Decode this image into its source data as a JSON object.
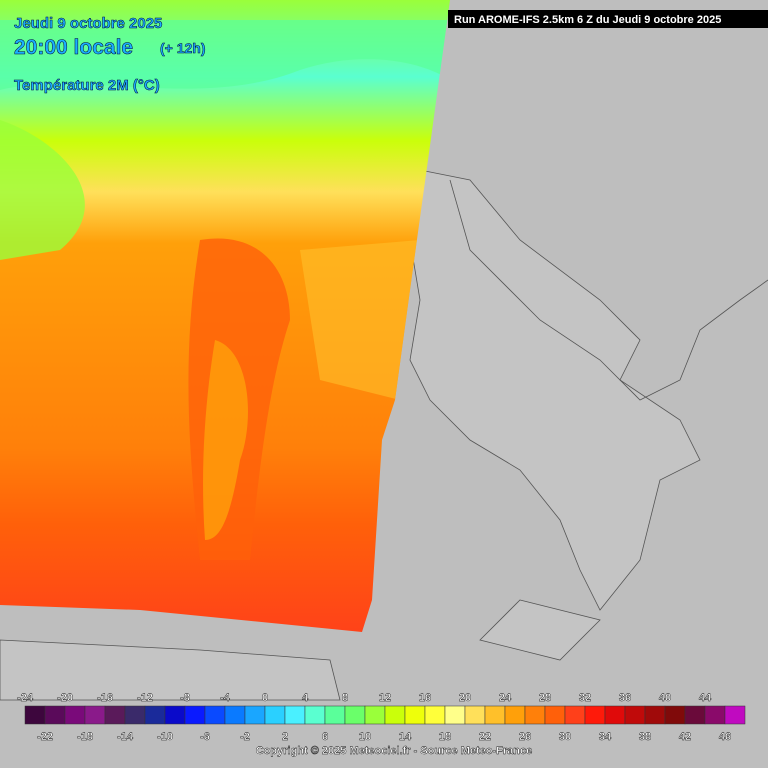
{
  "header": {
    "run": "Run AROME-IFS 2.5km 6 Z du Jeudi 9 octobre 2025",
    "date": "Jeudi 9 octobre 2025",
    "time": "20:00 locale",
    "offset": "(+ 12h)",
    "parameter": "Température 2M (°C)"
  },
  "legend": {
    "colors": [
      "#3d063d",
      "#5a0a5a",
      "#7a0a7a",
      "#8a1a8a",
      "#5a1a5a",
      "#3a2a6a",
      "#1a2a9a",
      "#0a0aca",
      "#0a1aff",
      "#0a4aff",
      "#0a7aff",
      "#1aa6ff",
      "#2ad0ff",
      "#4af0ff",
      "#5affd0",
      "#5aff9a",
      "#6aff6a",
      "#9aff3a",
      "#caff0a",
      "#eeff0a",
      "#ffff3a",
      "#ffff8a",
      "#ffe05a",
      "#ffc02a",
      "#ffa00a",
      "#ff800a",
      "#ff600a",
      "#ff401a",
      "#ff1a0a",
      "#e00a0a",
      "#c00a0a",
      "#a00a0a",
      "#800a0a",
      "#6a0a3a",
      "#8a0a6a",
      "#c00ac0"
    ],
    "top_labels": [
      "-24",
      "-20",
      "-16",
      "-12",
      "-8",
      "-4",
      "0",
      "4",
      "8",
      "12",
      "16",
      "20",
      "24",
      "28",
      "32",
      "36",
      "40",
      "44"
    ],
    "bottom_labels": [
      "-22",
      "-18",
      "-14",
      "-10",
      "-6",
      "-2",
      "2",
      "6",
      "10",
      "14",
      "18",
      "22",
      "26",
      "30",
      "34",
      "38",
      "42",
      "46"
    ]
  },
  "footer": {
    "copyright": "Copyright © 2025 Meteociel.fr - Source Meteo-France"
  }
}
